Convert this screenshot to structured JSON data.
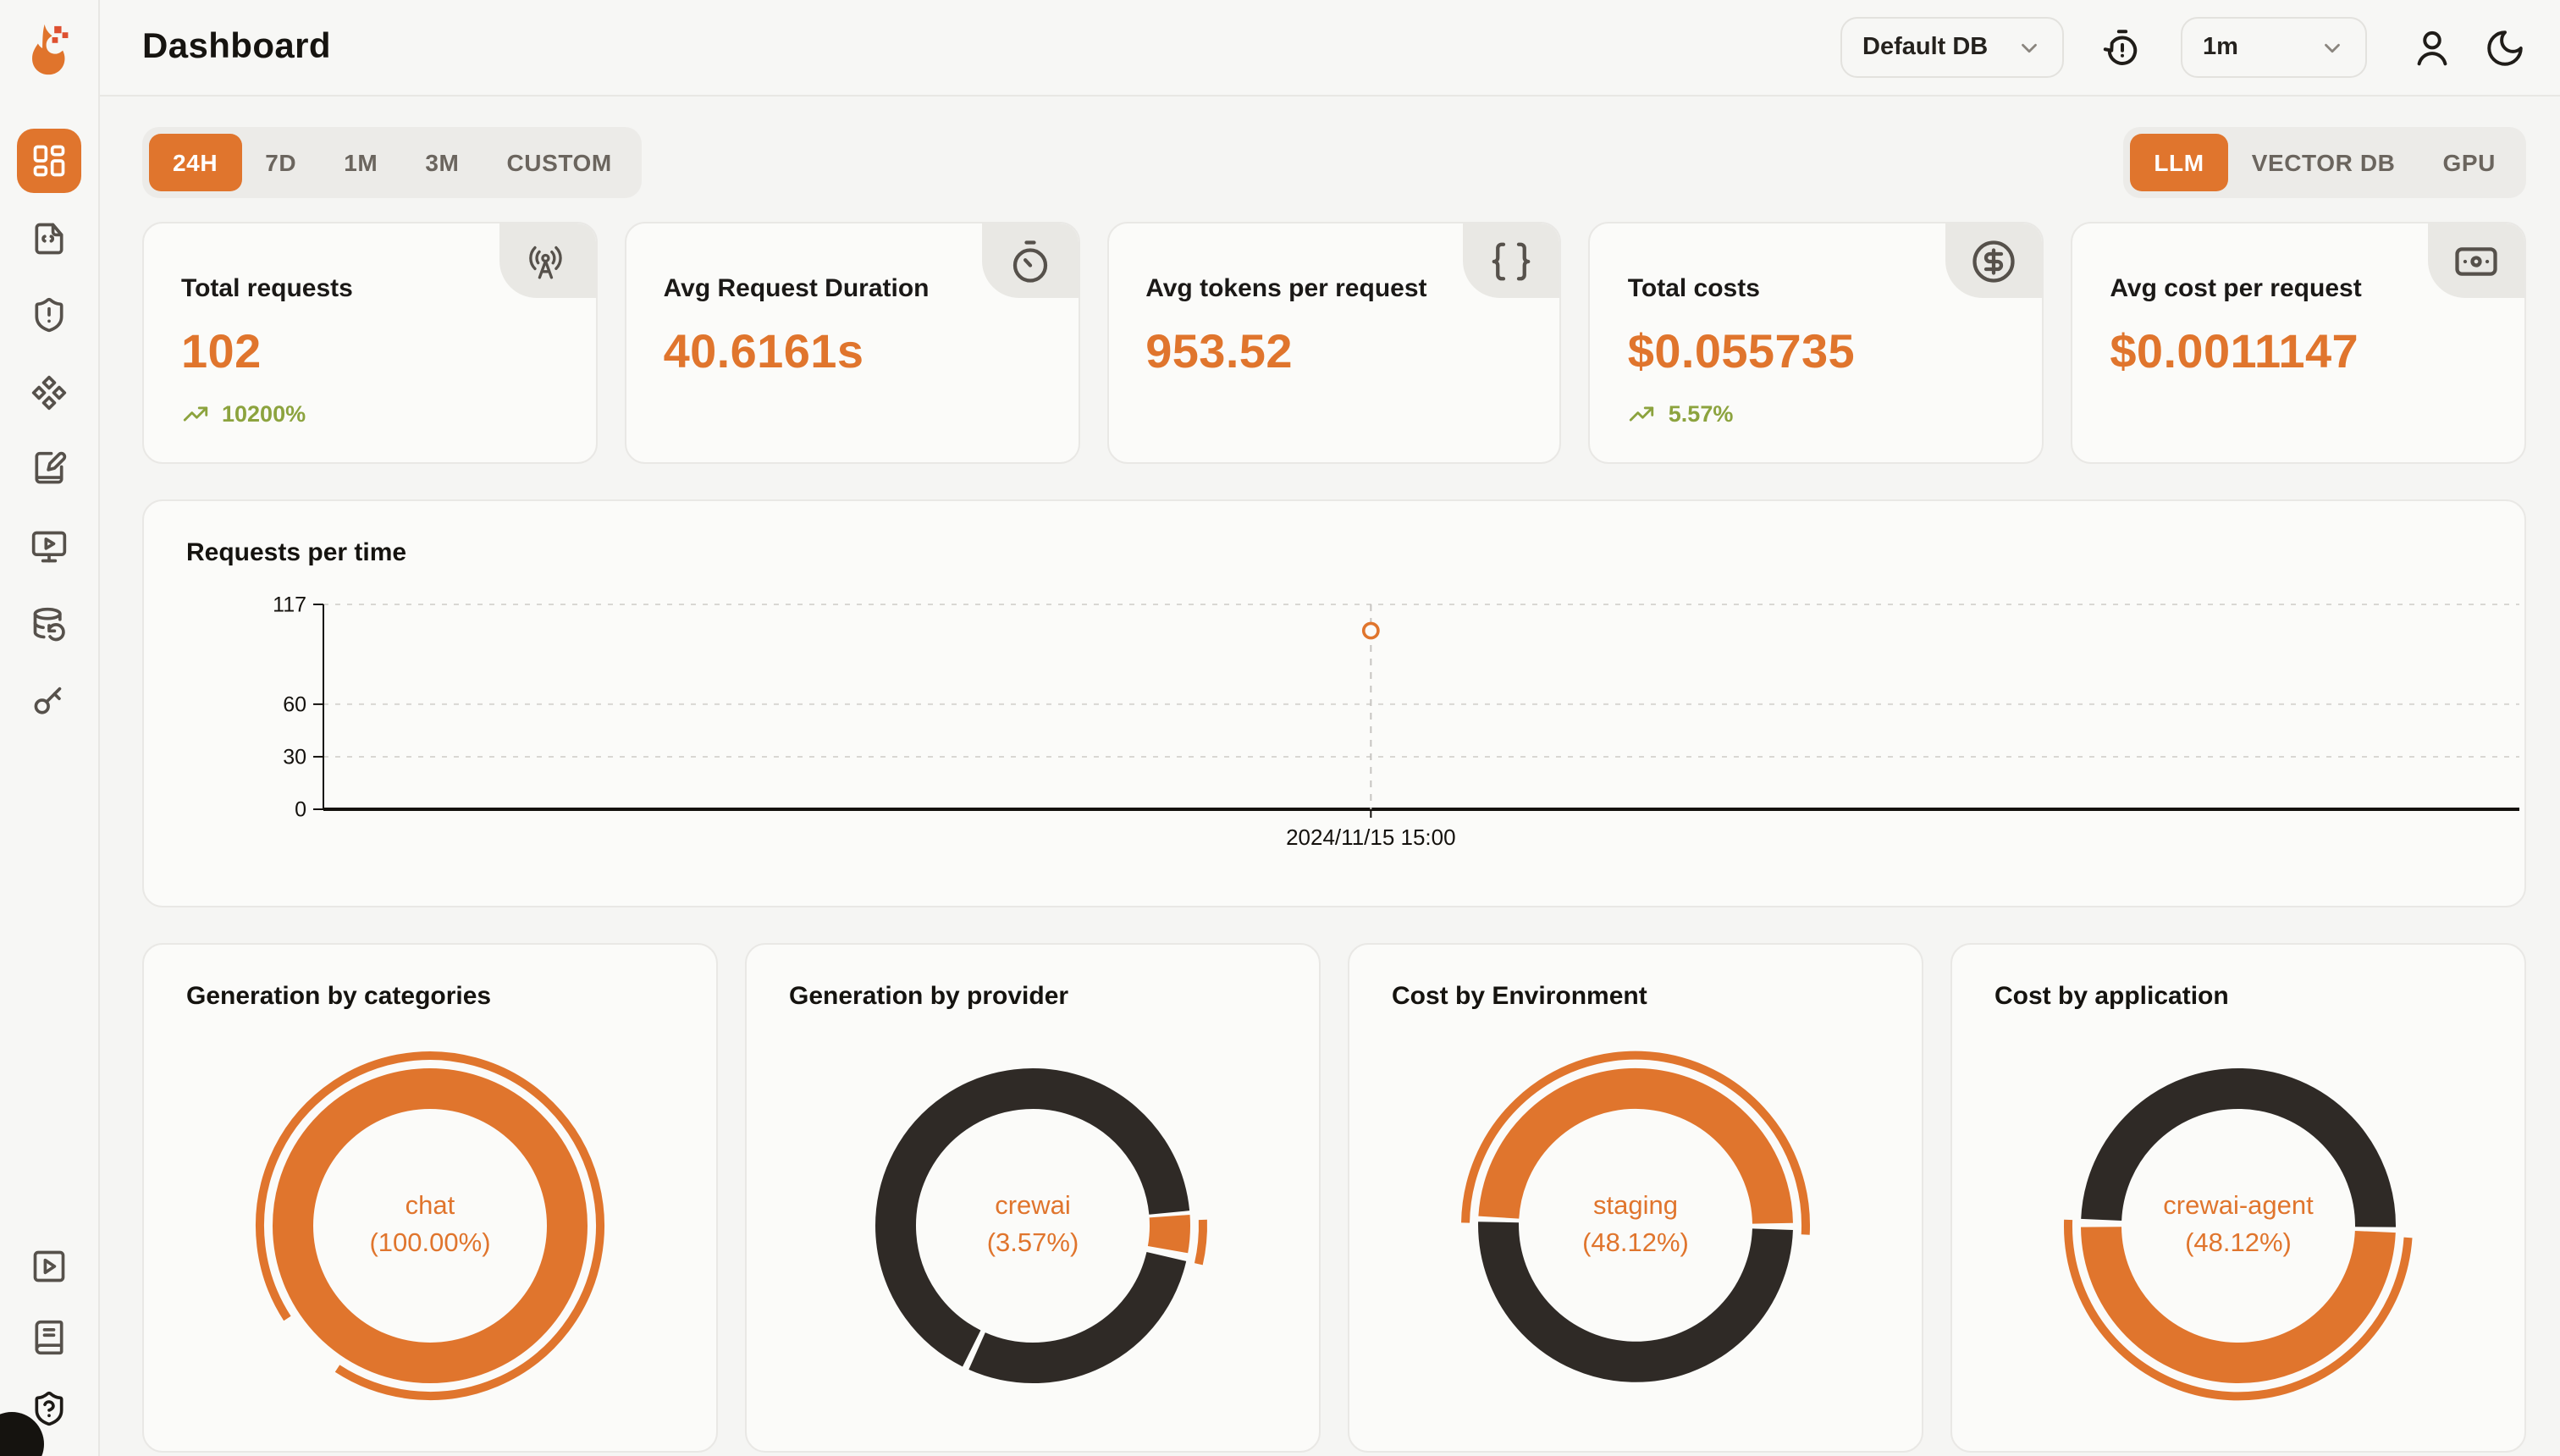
{
  "app": {
    "title": "Dashboard"
  },
  "header": {
    "db_select": {
      "value": "Default DB",
      "icon": "chevron-down-icon"
    },
    "refresh_select": {
      "value": "1m",
      "icon": "chevron-down-icon"
    },
    "icons": [
      "history-timer-icon",
      "user-icon",
      "moon-icon"
    ]
  },
  "sidebar": {
    "items": [
      "dashboard",
      "requests",
      "exceptions",
      "prompts",
      "playground",
      "openground",
      "databases",
      "api-keys"
    ],
    "bottom_items": [
      "getting-started",
      "docs",
      "support"
    ],
    "active": "dashboard"
  },
  "filters": {
    "time_ranges": [
      "24H",
      "7D",
      "1M",
      "3M",
      "CUSTOM"
    ],
    "active_time_range": "24H",
    "sources": [
      "LLM",
      "VECTOR DB",
      "GPU"
    ],
    "active_source": "LLM"
  },
  "stats": [
    {
      "label": "Total requests",
      "value": "102",
      "delta": "10200%",
      "icon": "radio-tower-icon"
    },
    {
      "label": "Avg Request Duration",
      "value": "40.6161s",
      "icon": "timer-icon"
    },
    {
      "label": "Avg tokens per request",
      "value": "953.52",
      "icon": "braces-icon"
    },
    {
      "label": "Total costs",
      "value": "$0.055735",
      "delta": "5.57%",
      "icon": "circle-dollar-icon"
    },
    {
      "label": "Avg cost per request",
      "value": "$0.0011147",
      "icon": "banknote-icon"
    }
  ],
  "colors": {
    "accent": "#e0752d",
    "dark": "#2f2a26",
    "green": "#8ca33e",
    "page_bg": "#f5f5f3",
    "card_bg": "#fbfbf9",
    "border": "#e9e8e5",
    "grid": "#d9d7d3",
    "axis": "#14110d",
    "pointer": "#c6c4c0"
  },
  "chart_data": [
    {
      "type": "line",
      "title": "Requests per time",
      "xlabel": "",
      "ylabel": "",
      "ylim": [
        0,
        117
      ],
      "yticks": [
        0,
        30,
        60,
        117
      ],
      "grid": "dashed-horizontal",
      "points": [
        {
          "x": "2024/11/15 15:00",
          "y": 102,
          "x_frac": 0.477
        }
      ],
      "axis_pointer": {
        "x_label": "2024/11/15 15:00",
        "style": "dashed-vertical"
      }
    },
    {
      "type": "pie",
      "title": "Generation by categories",
      "center_label": [
        "chat",
        "(100.00%)"
      ],
      "selected": {
        "name": "chat",
        "pct": 100.0
      },
      "arcs": [
        {
          "color": "accent",
          "from": 0,
          "to": 360
        }
      ],
      "highlight": {
        "from": 237,
        "to": 573
      }
    },
    {
      "type": "pie",
      "title": "Generation by provider",
      "center_label": [
        "crewai",
        "(3.57%)"
      ],
      "selected": {
        "name": "crewai",
        "pct": 3.57
      },
      "arcs": [
        {
          "color": "dark",
          "from": 103,
          "to": 204
        },
        {
          "color": "dark",
          "from": 206.5,
          "to": 444.5
        },
        {
          "color": "accent",
          "from": 86,
          "to": 100
        }
      ],
      "highlight": {
        "from": 88,
        "to": 103
      }
    },
    {
      "type": "pie",
      "title": "Cost by Environment",
      "center_label": [
        "staging",
        "(48.12%)"
      ],
      "selected": {
        "name": "staging",
        "pct": 48.12
      },
      "arcs": [
        {
          "color": "dark",
          "from": 91.5,
          "to": 271.5
        },
        {
          "color": "accent",
          "from": 273.5,
          "to": 449
        }
      ],
      "highlight": {
        "from": 271,
        "to": 453
      }
    },
    {
      "type": "pie",
      "title": "Cost by application",
      "center_label": [
        "crewai-agent",
        "(48.12%)"
      ],
      "selected": {
        "name": "crewai-agent",
        "pct": 48.12
      },
      "arcs": [
        {
          "color": "dark",
          "from": 272.5,
          "to": 450.5
        },
        {
          "color": "accent",
          "from": 92.5,
          "to": 269.5
        }
      ],
      "highlight": {
        "from": 94,
        "to": 272
      }
    }
  ]
}
